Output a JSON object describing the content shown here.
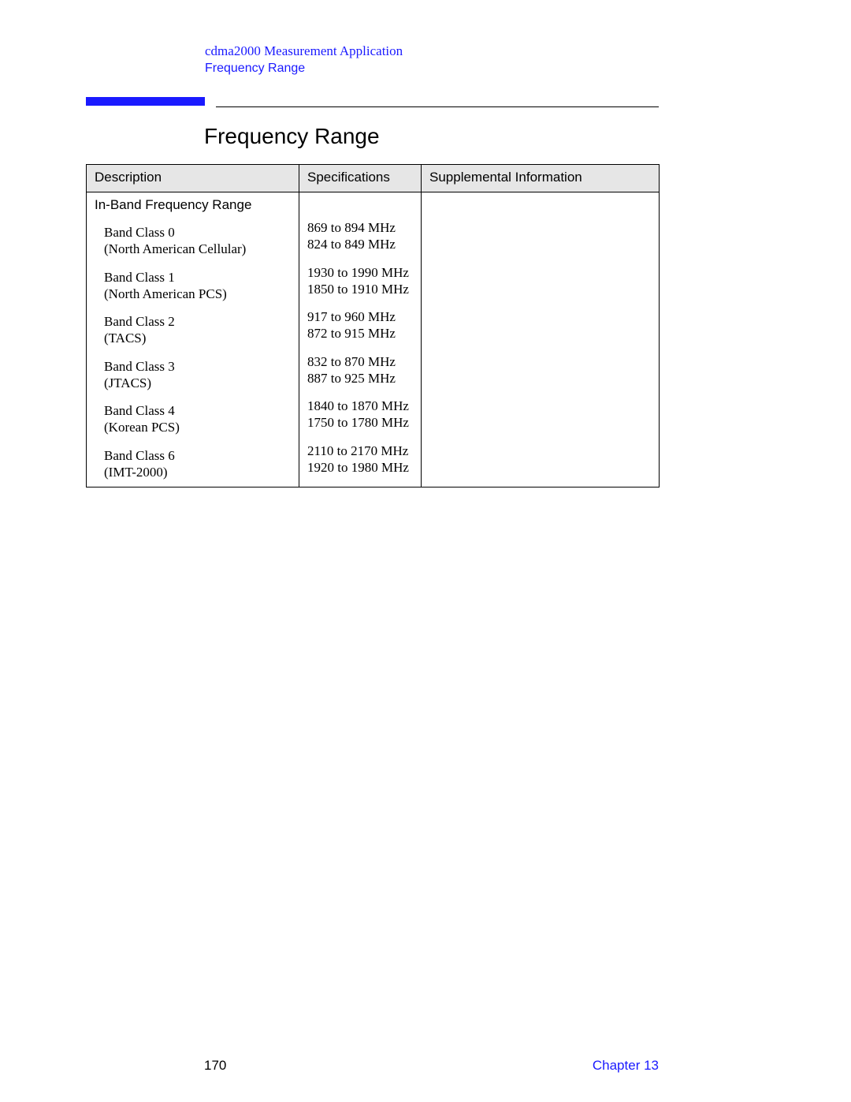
{
  "header": {
    "line1": "cdma2000 Measurement Application",
    "line2": "Frequency Range"
  },
  "section_title": "Frequency Range",
  "table": {
    "columns": [
      "Description",
      "Specifications",
      "Supplemental Information"
    ],
    "section_label": "In-Band Frequency Range",
    "rows": [
      {
        "name": "Band Class 0",
        "sub": "(North American Cellular)",
        "spec1": "869 to 894 MHz",
        "spec2": "824 to 849 MHz"
      },
      {
        "name": "Band Class 1",
        "sub": "(North American PCS)",
        "spec1": "1930 to 1990 MHz",
        "spec2": "1850 to 1910 MHz"
      },
      {
        "name": "Band Class 2",
        "sub": "(TACS)",
        "spec1": "917 to 960 MHz",
        "spec2": "872 to 915 MHz"
      },
      {
        "name": "Band Class 3",
        "sub": "(JTACS)",
        "spec1": "832 to 870 MHz",
        "spec2": "887 to 925 MHz"
      },
      {
        "name": "Band Class 4",
        "sub": "(Korean PCS)",
        "spec1": "1840 to 1870 MHz",
        "spec2": "1750 to 1780 MHz"
      },
      {
        "name": "Band Class 6",
        "sub": "(IMT-2000)",
        "spec1": "2110 to 2170 MHz",
        "spec2": "1920 to 1980 MHz"
      }
    ]
  },
  "footer": {
    "page_number": "170",
    "chapter": "Chapter 13"
  },
  "colors": {
    "link_blue": "#1a1aff",
    "header_bg": "#e6e6e6",
    "text": "#000000",
    "page_bg": "#ffffff"
  }
}
